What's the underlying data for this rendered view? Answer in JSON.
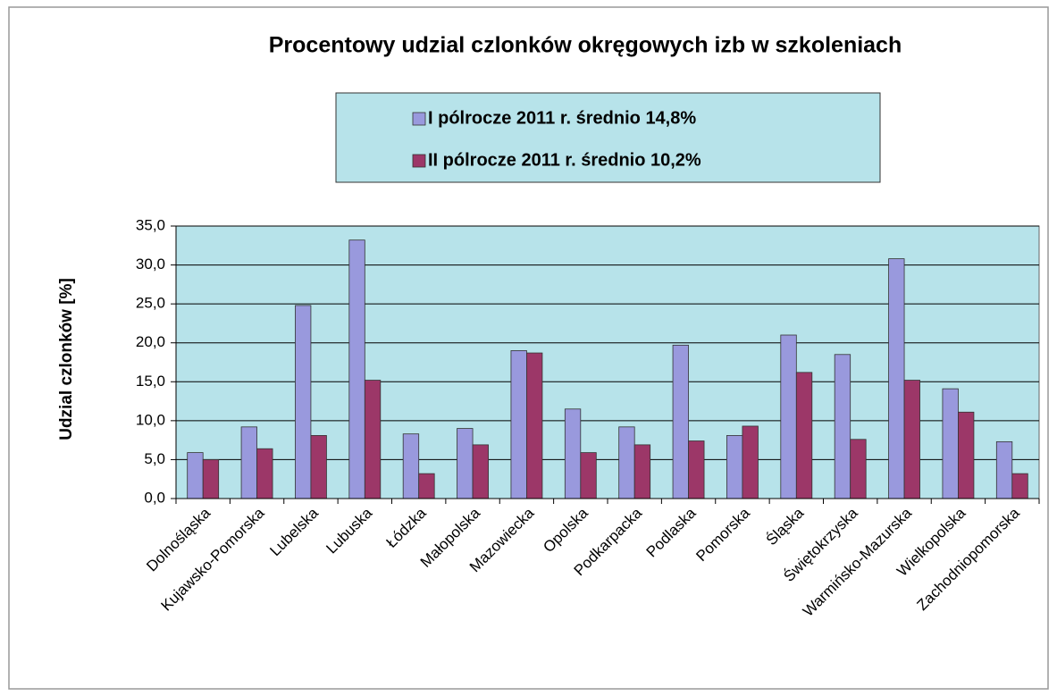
{
  "chart_data": {
    "type": "bar",
    "title": "Procentowy udzial czlonków okręgowych izb w szkoleniach",
    "y_label": "Udzial czlonków  [%]",
    "categories": [
      "Dolnośląska",
      "Kujawsko-Pomorska",
      "Lubelska",
      "Lubuska",
      "Łódzka",
      "Małopolska",
      "Mazowiecka",
      "Opolska",
      "Podkarpacka",
      "Podlaska",
      "Pomorska",
      "Śląska",
      "Świętokrzyska",
      "Warmińsko-Mazurska",
      "Wielkopolska",
      "Zachodniopomorska"
    ],
    "series": [
      {
        "name": "I pólrocze 2011 r. średnio 14,8%",
        "color": "#9999dd",
        "values": [
          5.9,
          9.2,
          24.8,
          33.2,
          8.3,
          9.0,
          19.0,
          11.5,
          9.2,
          19.7,
          8.1,
          21.0,
          18.5,
          30.8,
          14.1,
          7.3
        ]
      },
      {
        "name": "II pólrocze 2011 r. średnio 10,2%",
        "color": "#9c3768",
        "values": [
          5.0,
          6.4,
          8.1,
          15.2,
          3.2,
          6.9,
          18.7,
          5.9,
          6.9,
          7.4,
          9.3,
          16.2,
          7.6,
          15.2,
          11.1,
          3.2
        ]
      }
    ],
    "ylim": [
      0,
      35
    ],
    "yticks": [
      {
        "value": 0,
        "label": "0,0"
      },
      {
        "value": 5,
        "label": "5,0"
      },
      {
        "value": 10,
        "label": "10,0"
      },
      {
        "value": 15,
        "label": "15,0"
      },
      {
        "value": 20,
        "label": "20,0"
      },
      {
        "value": 25,
        "label": "25,0"
      },
      {
        "value": 30,
        "label": "30,0"
      },
      {
        "value": 35,
        "label": "35,0"
      }
    ],
    "grid": true,
    "legend": "top"
  }
}
